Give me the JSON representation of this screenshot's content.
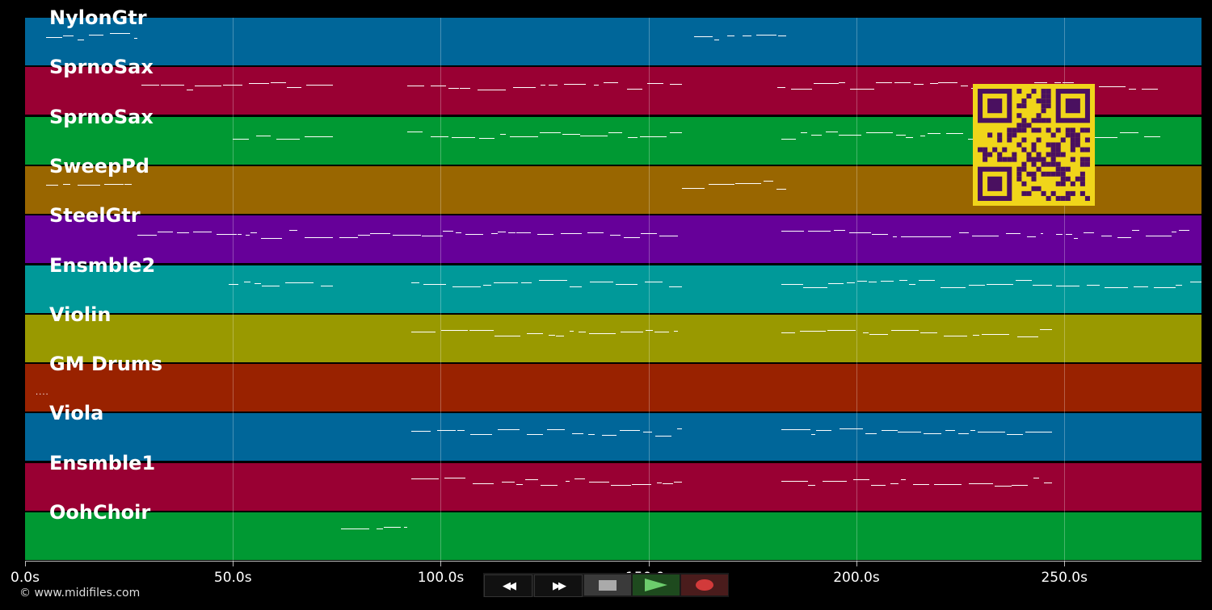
{
  "tracks": [
    {
      "name": "NylonGtr",
      "color": "#006699"
    },
    {
      "name": "SprnoSax",
      "color": "#990033"
    },
    {
      "name": "SprnoSax",
      "color": "#009933"
    },
    {
      "name": "SweepPd",
      "color": "#996600"
    },
    {
      "name": "SteelGtr",
      "color": "#660099"
    },
    {
      "name": "Ensmble2",
      "color": "#009999"
    },
    {
      "name": "Violin",
      "color": "#999900"
    },
    {
      "name": "GM Drums",
      "color": "#992200"
    },
    {
      "name": "Viola",
      "color": "#006699"
    },
    {
      "name": "Ensmble1",
      "color": "#990033"
    },
    {
      "name": "OohChoir",
      "color": "#009933"
    }
  ],
  "time_axis": {
    "unit": "s",
    "max_seconds": 283,
    "ticks": [
      "0.0s",
      "50.0s",
      "100.0s",
      "150.0s",
      "200.0s",
      "250.0s"
    ],
    "tick_values": [
      0,
      50,
      100,
      150,
      200,
      250
    ]
  },
  "copyright": "© www.midifiles.com",
  "transport": {
    "rewind_label": "◀◀",
    "forward_label": "▶▶"
  },
  "qr_colors": {
    "background": "#f0d51a",
    "foreground": "#4a1060"
  }
}
